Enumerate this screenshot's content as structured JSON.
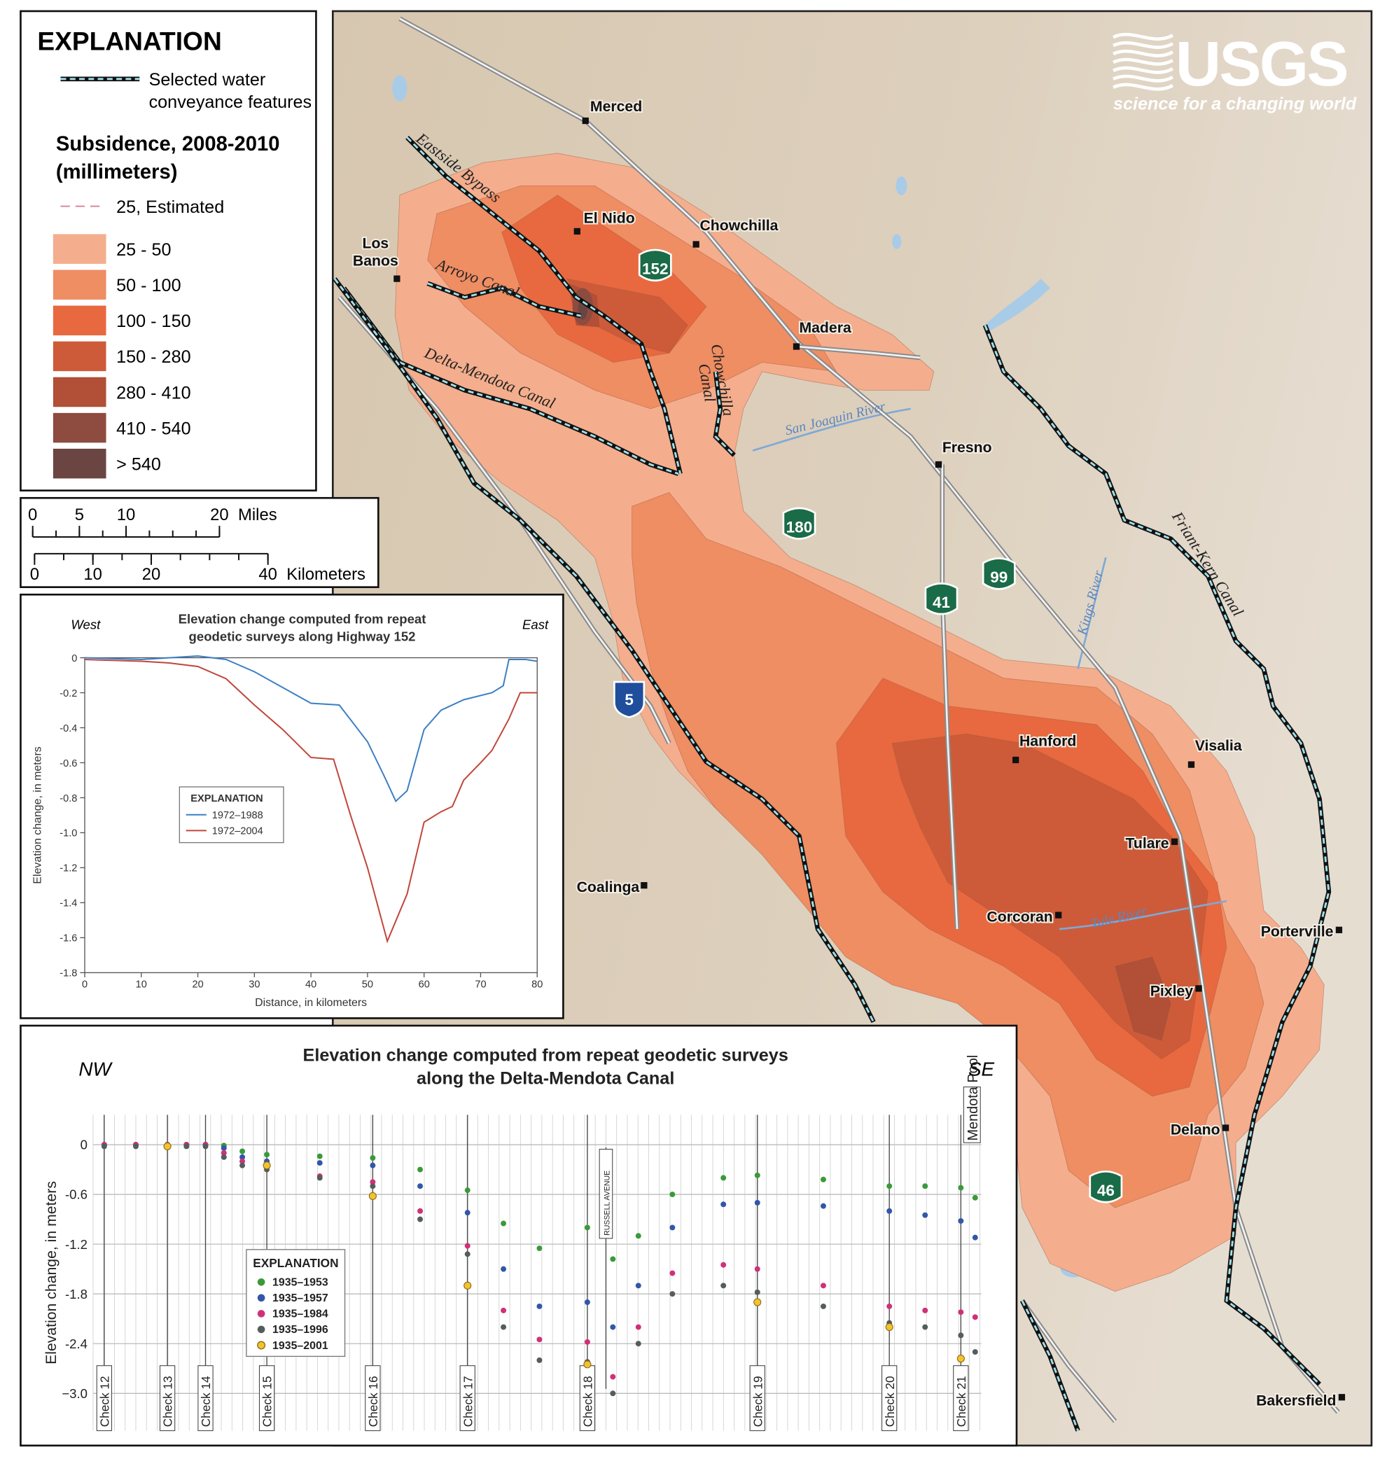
{
  "map": {
    "logo": {
      "name": "USGS",
      "tagline": "science for a changing world"
    },
    "cities": [
      "Merced",
      "El Nido",
      "Chowchilla",
      [
        "Los",
        "Banos"
      ],
      "Madera",
      "Fresno",
      "Hanford",
      "Visalia",
      "Tulare",
      "Corcoran",
      "Coalinga",
      "Porterville",
      "Pixley",
      "Delano",
      "Bakersfield"
    ],
    "canals": [
      "Eastside Bypass",
      "Arroyo Canal",
      "Delta-Mendota Canal",
      [
        "Chowchilla",
        "Canal"
      ],
      "Friant-Kern Canal"
    ],
    "rivers": [
      "San Joaquin River",
      "Kings River",
      "Tule River"
    ],
    "highways": [
      "152",
      "180",
      "99",
      "41",
      "5",
      "46"
    ],
    "legend": {
      "title": "EXPLANATION",
      "conveyance": [
        "Selected water",
        "conveyance features"
      ],
      "subsidence_title": [
        "Subsidence, 2008-2010",
        "(millimeters)"
      ],
      "estimated": "25, Estimated",
      "classes": [
        {
          "label": "25 - 50",
          "color": "#f4ae8d"
        },
        {
          "label": "50 - 100",
          "color": "#ef8d63"
        },
        {
          "label": "100 - 150",
          "color": "#e8693f"
        },
        {
          "label": "150 - 280",
          "color": "#cd5b39"
        },
        {
          "label": "280 - 410",
          "color": "#b14f37"
        },
        {
          "label": "410 - 540",
          "color": "#8e4b3f"
        },
        {
          "label": "> 540",
          "color": "#6b4542"
        }
      ]
    },
    "scale": {
      "miles": {
        "ticks": [
          0,
          5,
          10,
          20
        ],
        "unit": "Miles"
      },
      "kilometers": {
        "ticks": [
          0,
          10,
          20,
          40
        ],
        "unit": "Kilometers"
      }
    }
  },
  "chart_data": [
    {
      "type": "line",
      "title": [
        "Elevation change computed from repeat",
        "geodetic surveys along Highway 152"
      ],
      "west": "West",
      "east": "East",
      "xlabel": "Distance, in kilometers",
      "ylabel": "Elevation change, in meters",
      "legend_title": "EXPLANATION",
      "xlim": [
        0,
        80
      ],
      "xticks": [
        0,
        10,
        20,
        30,
        40,
        50,
        60,
        70,
        80
      ],
      "ylim": [
        -1.8,
        0
      ],
      "yticks": [
        0,
        -0.2,
        -0.4,
        -0.6,
        -0.8,
        {
          "value": -1,
          "label": "-1.0"
        },
        -1.2,
        -1.4,
        -1.6,
        -1.8
      ],
      "series": [
        {
          "name": "1972–1988",
          "color": "#3b7fc4",
          "x": [
            0,
            10,
            20,
            25,
            30,
            35,
            40,
            45,
            50,
            53,
            55,
            57,
            60,
            63,
            67,
            72,
            74,
            75,
            78,
            80
          ],
          "values": [
            0,
            -0.01,
            0.01,
            -0.01,
            -0.08,
            -0.17,
            -0.26,
            -0.27,
            -0.48,
            -0.68,
            -0.82,
            -0.76,
            -0.41,
            -0.3,
            -0.24,
            -0.2,
            -0.16,
            -0.01,
            -0.01,
            -0.02
          ]
        },
        {
          "name": "1972–2004",
          "color": "#c0463a",
          "x": [
            0,
            10,
            15,
            20,
            25,
            30,
            35,
            40,
            44,
            47,
            50,
            53.5,
            57,
            60,
            63,
            65,
            67,
            70,
            72,
            75,
            77,
            80
          ],
          "values": [
            -0.01,
            -0.02,
            -0.03,
            -0.05,
            -0.12,
            -0.27,
            -0.41,
            -0.57,
            -0.58,
            -0.9,
            -1.2,
            -1.62,
            -1.35,
            -0.94,
            -0.88,
            -0.85,
            -0.7,
            -0.6,
            -0.53,
            -0.35,
            -0.2,
            -0.2
          ]
        }
      ]
    },
    {
      "type": "scatter",
      "title": [
        "Elevation change computed from repeat geodetic surveys",
        "along the Delta-Mendota Canal"
      ],
      "nw": "NW",
      "se": "SE",
      "ylabel": "Elevation change, in meters",
      "legend_title": "EXPLANATION",
      "markers": [
        "RUSSELL AVENUE",
        "Mendota Pool"
      ],
      "xticks": [
        {
          "value": 12,
          "label": "Check 12"
        },
        {
          "value": 13,
          "label": "Check 13"
        },
        {
          "value": 14,
          "label": "Check 14"
        },
        {
          "value": 15,
          "label": "Check 15"
        },
        {
          "value": 16,
          "label": "Check 16"
        },
        {
          "value": 17,
          "label": "Check 17"
        },
        {
          "value": 18,
          "label": "Check 18"
        },
        {
          "value": 19,
          "label": "Check 19"
        },
        {
          "value": 20,
          "label": "Check 20"
        },
        {
          "value": 21,
          "label": "Check 21"
        }
      ],
      "ylim": [
        -3.45,
        0.36
      ],
      "yticks": [
        0,
        -0.6,
        -1.2,
        -1.8,
        -2.4,
        {
          "value": -3,
          "label": "−3.0"
        }
      ],
      "series": [
        {
          "name": "1935–1953",
          "color": "#3a9a3a",
          "x": [
            12,
            12.5,
            13,
            13.5,
            14,
            14.3,
            14.6,
            15,
            15.5,
            16,
            16.5,
            17,
            17.3,
            17.6,
            18,
            18.15,
            18.3,
            18.5,
            18.8,
            19,
            19.5,
            20,
            20.5,
            21,
            21.2
          ],
          "values": [
            0,
            0,
            0,
            0,
            0,
            -0.01,
            -0.08,
            -0.12,
            -0.14,
            -0.16,
            -0.3,
            -0.55,
            -0.95,
            -1.25,
            -1.0,
            -1.38,
            -1.1,
            -0.6,
            -0.4,
            -0.37,
            -0.42,
            -0.5,
            -0.5,
            -0.52,
            -0.64
          ]
        },
        {
          "name": "1935–1957",
          "color": "#3356a8",
          "x": [
            12,
            12.5,
            13,
            13.5,
            14,
            14.3,
            14.6,
            15,
            15.5,
            16,
            16.5,
            17,
            17.3,
            17.6,
            18,
            18.15,
            18.3,
            18.5,
            18.8,
            19,
            19.5,
            20,
            20.5,
            21,
            21.2
          ],
          "values": [
            0,
            0,
            0,
            0,
            0,
            -0.04,
            -0.15,
            -0.2,
            -0.22,
            -0.25,
            -0.5,
            -0.82,
            -1.5,
            -1.95,
            -1.9,
            -2.2,
            -1.7,
            -1.0,
            -0.72,
            -0.7,
            -0.74,
            -0.8,
            -0.85,
            -0.92,
            -1.12
          ]
        },
        {
          "name": "1935–1984",
          "color": "#d0307a",
          "x": [
            12,
            12.5,
            13,
            13.5,
            14,
            14.3,
            14.6,
            15,
            15.5,
            16,
            16.5,
            17,
            17.3,
            17.6,
            18,
            18.15,
            18.3,
            18.5,
            18.8,
            19,
            19.5,
            20,
            20.5,
            21,
            21.2
          ],
          "values": [
            0,
            0,
            0,
            0,
            0,
            -0.1,
            -0.2,
            -0.28,
            -0.38,
            -0.45,
            -0.8,
            -1.22,
            -2.0,
            -2.35,
            -2.38,
            -2.8,
            -2.2,
            -1.55,
            -1.45,
            -1.5,
            -1.7,
            -1.95,
            -2.0,
            -2.02,
            -2.08
          ]
        },
        {
          "name": "1935–1996",
          "color": "#555c5c",
          "x": [
            12,
            12.5,
            13,
            13.5,
            14,
            14.3,
            14.6,
            15,
            15.5,
            16,
            16.5,
            17,
            17.3,
            17.6,
            18,
            18.15,
            18.3,
            18.5,
            18.8,
            19,
            19.5,
            20,
            20.5,
            21,
            21.2
          ],
          "values": [
            -0.02,
            -0.02,
            -0.02,
            -0.02,
            -0.02,
            -0.15,
            -0.25,
            -0.3,
            -0.4,
            -0.5,
            -0.9,
            -1.32,
            -2.2,
            -2.6,
            -2.62,
            -3.0,
            -2.4,
            -1.8,
            -1.7,
            -1.78,
            -1.95,
            -2.15,
            -2.2,
            -2.3,
            -2.5
          ]
        },
        {
          "name": "1935–2001",
          "color": "#f2c230",
          "x": [
            13,
            15,
            16,
            17,
            18,
            19,
            20,
            21
          ],
          "values": [
            -0.02,
            -0.25,
            -0.62,
            -1.7,
            -2.65,
            -1.9,
            -2.2,
            -2.58
          ]
        }
      ]
    }
  ]
}
